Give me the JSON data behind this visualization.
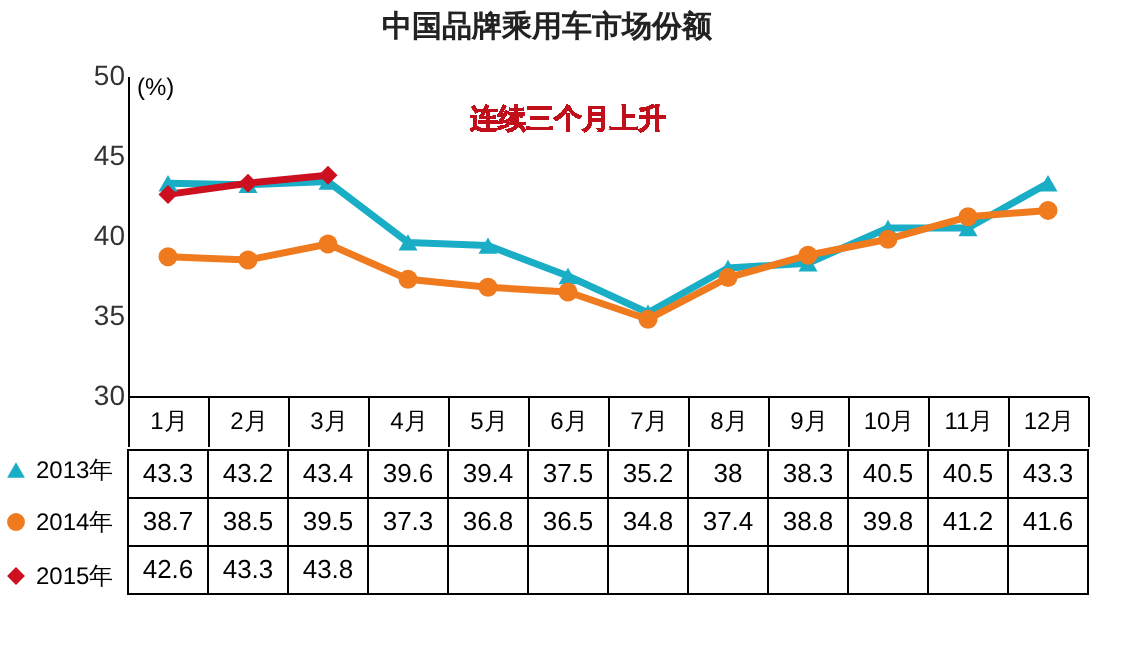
{
  "chart_data": {
    "type": "line",
    "title": "中国品牌乘用车市场份额",
    "ylabel": "(%)",
    "categories": [
      "1月",
      "2月",
      "3月",
      "4月",
      "5月",
      "6月",
      "7月",
      "8月",
      "9月",
      "10月",
      "11月",
      "12月"
    ],
    "series": [
      {
        "name": "2013年",
        "color": "#19adc6",
        "marker": "triangle",
        "values": [
          43.3,
          43.2,
          43.4,
          39.6,
          39.4,
          37.5,
          35.2,
          38,
          38.3,
          40.5,
          40.5,
          43.3
        ]
      },
      {
        "name": "2014年",
        "color": "#f07a1e",
        "marker": "circle",
        "values": [
          38.7,
          38.5,
          39.5,
          37.3,
          36.8,
          36.5,
          34.8,
          37.4,
          38.8,
          39.8,
          41.2,
          41.6
        ]
      },
      {
        "name": "2015年",
        "color": "#cc1020",
        "marker": "diamond",
        "values": [
          42.6,
          43.3,
          43.8,
          null,
          null,
          null,
          null,
          null,
          null,
          null,
          null,
          null
        ]
      }
    ],
    "ylim": [
      30,
      50
    ],
    "yticks": [
      30,
      35,
      40,
      45,
      50
    ],
    "grid": false,
    "legend": "bottom left",
    "data_labels": true,
    "annotations": [
      "连续三个月上升"
    ]
  }
}
